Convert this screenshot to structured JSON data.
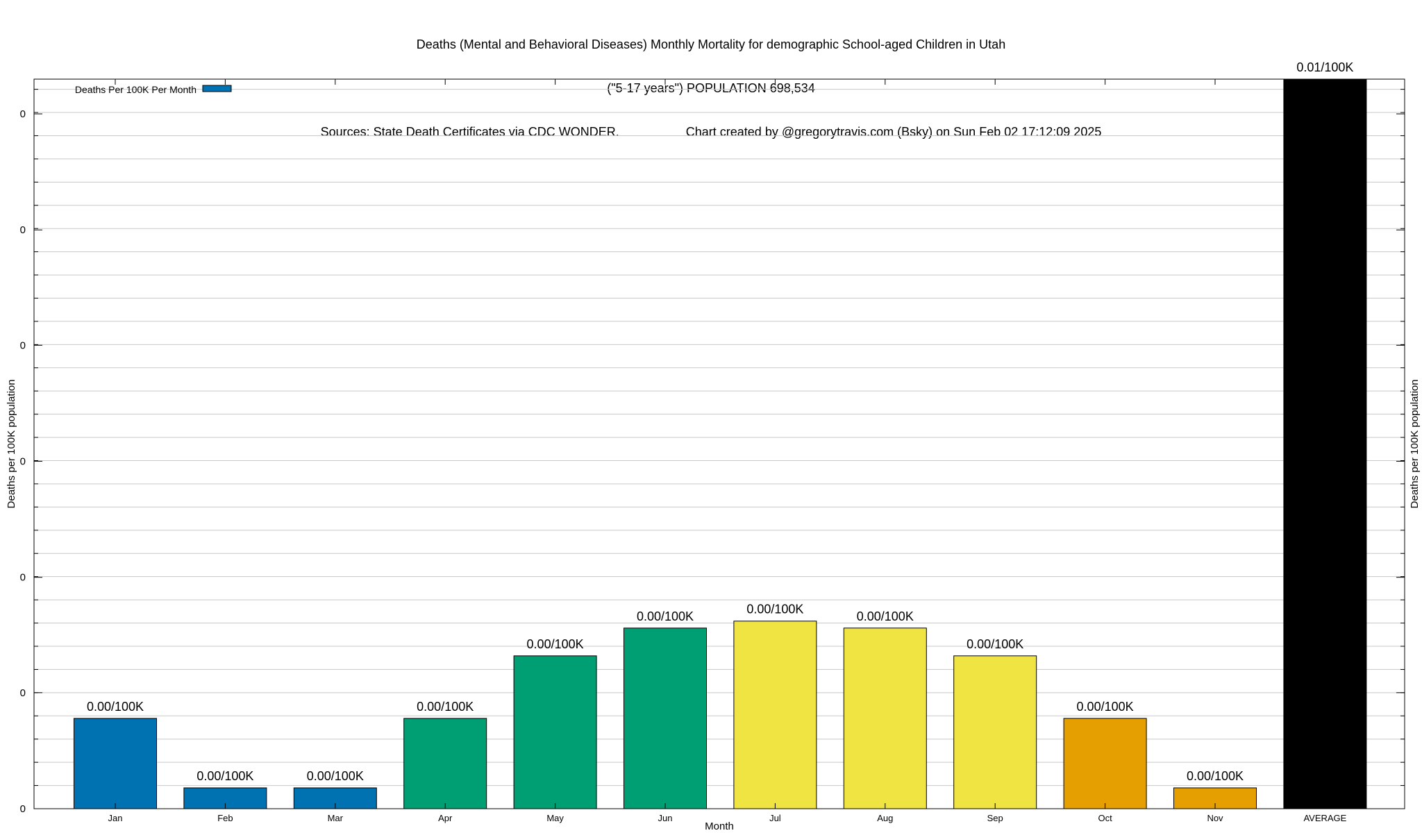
{
  "chart_data": {
    "type": "bar",
    "title": "Deaths (Mental and Behavioral Diseases) Monthly Mortality for demographic School-aged Children in Utah",
    "subtitle": "(\"5-17 years\") POPULATION 698,534",
    "source": "Sources: State Death Certificates via CDC WONDER.",
    "credit": "Chart created by @gregorytravis.com (Bsky) on Sun Feb 02 17:12:09 2025",
    "xlabel": "Month",
    "ylabel": "Deaths per 100K population",
    "y2label": "Deaths per 100K population",
    "legend": {
      "label": "Deaths Per 100K Per Month",
      "color": "#0072b2",
      "placement": "top-left"
    },
    "categories": [
      "Jan",
      "Feb",
      "Mar",
      "Apr",
      "May",
      "Jun",
      "Jul",
      "Aug",
      "Sep",
      "Oct",
      "Nov",
      "AVERAGE"
    ],
    "values": [
      0.0013,
      0.0003,
      0.0003,
      0.0013,
      0.0022,
      0.0026,
      0.0027,
      0.0026,
      0.0022,
      0.0013,
      0.0003,
      0.0105
    ],
    "data_labels": [
      "0.00/100K",
      "0.00/100K",
      "0.00/100K",
      "0.00/100K",
      "0.00/100K",
      "0.00/100K",
      "0.00/100K",
      "0.00/100K",
      "0.00/100K",
      "0.00/100K",
      "0.00/100K",
      "0.01/100K"
    ],
    "colors": [
      "#0072b2",
      "#0072b2",
      "#0072b2",
      "#009e73",
      "#009e73",
      "#009e73",
      "#f0e442",
      "#f0e442",
      "#f0e442",
      "#e69f00",
      "#e69f00",
      "#000000"
    ],
    "ylim": [
      0,
      0.0105
    ],
    "yticks": [
      0,
      0.00167,
      0.00333,
      0.005,
      0.00667,
      0.00833,
      0.01
    ],
    "ytick_labels": [
      "0",
      "0",
      "0",
      "0",
      "0",
      "0",
      "0"
    ],
    "grid": true
  }
}
